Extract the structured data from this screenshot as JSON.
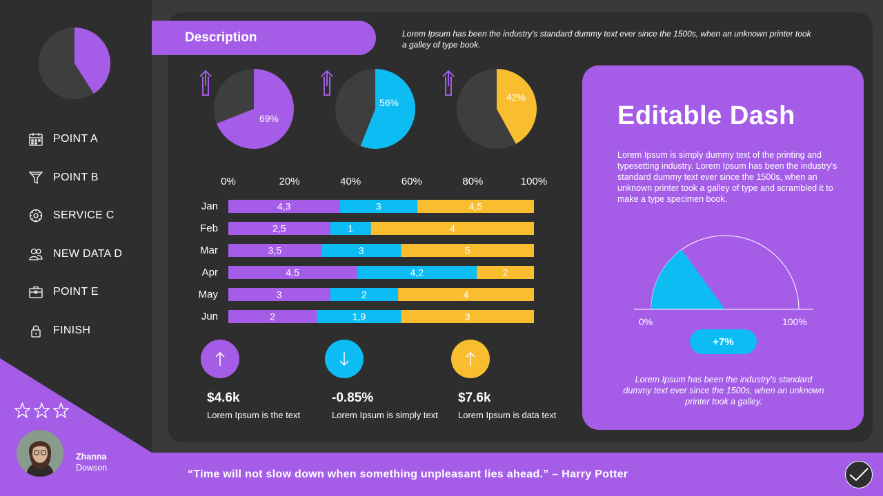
{
  "colors": {
    "purple": "#a55de8",
    "blue": "#0ebcf4",
    "yellow": "#f9be30",
    "dark": "#3a3a3a",
    "panel": "#2e2e2e"
  },
  "sidebar": {
    "pie": {
      "value": 0.41
    },
    "items": [
      {
        "label": "POINT A",
        "icon": "calendar-icon"
      },
      {
        "label": "POINT B",
        "icon": "filter-icon"
      },
      {
        "label": "SERVICE C",
        "icon": "gear-icon"
      },
      {
        "label": "NEW DATA D",
        "icon": "users-icon"
      },
      {
        "label": "POINT E",
        "icon": "briefcase-icon"
      },
      {
        "label": "FINISH",
        "icon": "lock-icon"
      }
    ],
    "rating": {
      "stars": 3,
      "icon": "star-outline-icon"
    },
    "profile": {
      "first_name": "Zhanna",
      "last_name": "Dowson"
    }
  },
  "header": {
    "title": "Description",
    "text": "Lorem Ipsum has been the industry's standard dummy text ever since the 1500s, when an unknown printer took a galley of type book."
  },
  "chart_data": [
    {
      "type": "pie",
      "values": [
        69,
        31
      ],
      "label": "69%",
      "color": "#a55de8",
      "trend_icon": "arrow-up-outline-icon"
    },
    {
      "type": "pie",
      "values": [
        56,
        44
      ],
      "label": "56%",
      "color": "#0ebcf4",
      "trend_icon": "arrow-up-outline-icon"
    },
    {
      "type": "pie",
      "values": [
        42,
        58
      ],
      "label": "42%",
      "color": "#f9be30",
      "trend_icon": "arrow-up-outline-icon"
    },
    {
      "type": "bar",
      "orientation": "horizontal",
      "stacked": "percent",
      "categories": [
        "Jan",
        "Feb",
        "Mar",
        "Apr",
        "May",
        "Jun"
      ],
      "x_ticks": [
        "0%",
        "20%",
        "40%",
        "60%",
        "80%",
        "100%"
      ],
      "xlim": [
        0,
        100
      ],
      "series": [
        {
          "values": [
            4.3,
            2.5,
            3.5,
            4.5,
            3,
            2
          ],
          "labels": [
            "4,3",
            "2,5",
            "3,5",
            "4,5",
            "3",
            "2"
          ],
          "color": "#a55de8"
        },
        {
          "values": [
            3,
            1,
            3,
            4.2,
            2,
            1.9
          ],
          "labels": [
            "3",
            "1",
            "3",
            "4,2",
            "2",
            "1,9"
          ],
          "color": "#0ebcf4"
        },
        {
          "values": [
            4.5,
            4,
            5,
            2,
            4,
            3
          ],
          "labels": [
            "4,5",
            "4",
            "5",
            "2",
            "4",
            "3"
          ],
          "color": "#f9be30"
        }
      ]
    }
  ],
  "kpis": [
    {
      "value": "$4.6k",
      "label": "Lorem Ipsum is the text",
      "icon": "arrow-up-icon",
      "color": "#a55de8"
    },
    {
      "value": "-0.85%",
      "label": "Lorem Ipsum is simply text",
      "icon": "arrow-down-icon",
      "color": "#0ebcf4"
    },
    {
      "value": "$7.6k",
      "label": "Lorem Ipsum is data text",
      "icon": "arrow-up-icon",
      "color": "#f9be30"
    }
  ],
  "card": {
    "title": "Editable Dash",
    "text": "Lorem Ipsum is simply dummy text of the printing and typesetting industry. Lorem Ipsum has been the industry's standard dummy text ever since the 1500s, when an unknown printer took a galley of type and scrambled it to make a type specimen book.",
    "gauge": {
      "value": 0.3,
      "min_label": "0%",
      "max_label": "100%",
      "badge": "+7%"
    },
    "footer_text": "Lorem Ipsum has been the industry's standard dummy text ever since the 1500s, when an unknown printer took a galley."
  },
  "footer": {
    "quote": "“Time will not slow down when something unpleasant lies ahead.” – Harry Potter",
    "button_icon": "check-icon"
  }
}
